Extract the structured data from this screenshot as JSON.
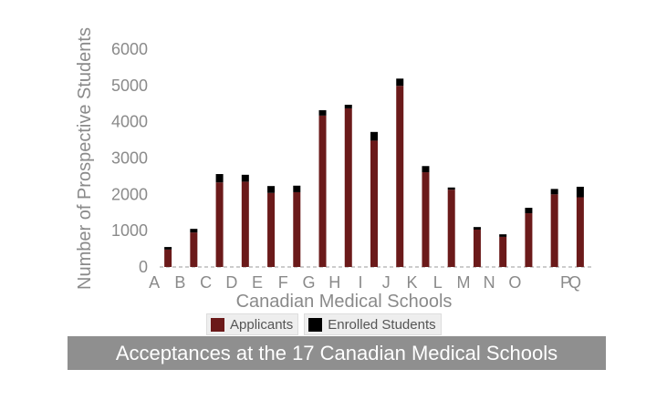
{
  "chart_data": {
    "type": "bar",
    "stacked": true,
    "title": "Acceptances at the 17 Canadian Medical Schools",
    "xlabel": "Canadian Medical Schools",
    "ylabel": "Number of Prospective Students",
    "ylim": [
      0,
      6000
    ],
    "yticks": [
      "0",
      "1000",
      "2000",
      "3000",
      "4000",
      "5000",
      "6000"
    ],
    "categories": [
      "A",
      "B",
      "C",
      "D",
      "E",
      "F",
      "G",
      "H",
      "I",
      "J",
      "K",
      "L",
      "M",
      "N",
      "O",
      "P",
      "Q"
    ],
    "series": [
      {
        "name": "Applicants",
        "color": "#6b1a1a",
        "values": [
          480,
          950,
          2330,
          2350,
          2040,
          2060,
          4170,
          4370,
          3480,
          4990,
          2610,
          2130,
          1030,
          830,
          1480,
          2000,
          1920
        ]
      },
      {
        "name": "Enrolled Students",
        "color": "#000000",
        "values": [
          70,
          100,
          230,
          190,
          190,
          180,
          150,
          100,
          240,
          200,
          170,
          60,
          70,
          70,
          150,
          150,
          290
        ]
      }
    ],
    "grid": false,
    "legend_position": "bottom"
  }
}
